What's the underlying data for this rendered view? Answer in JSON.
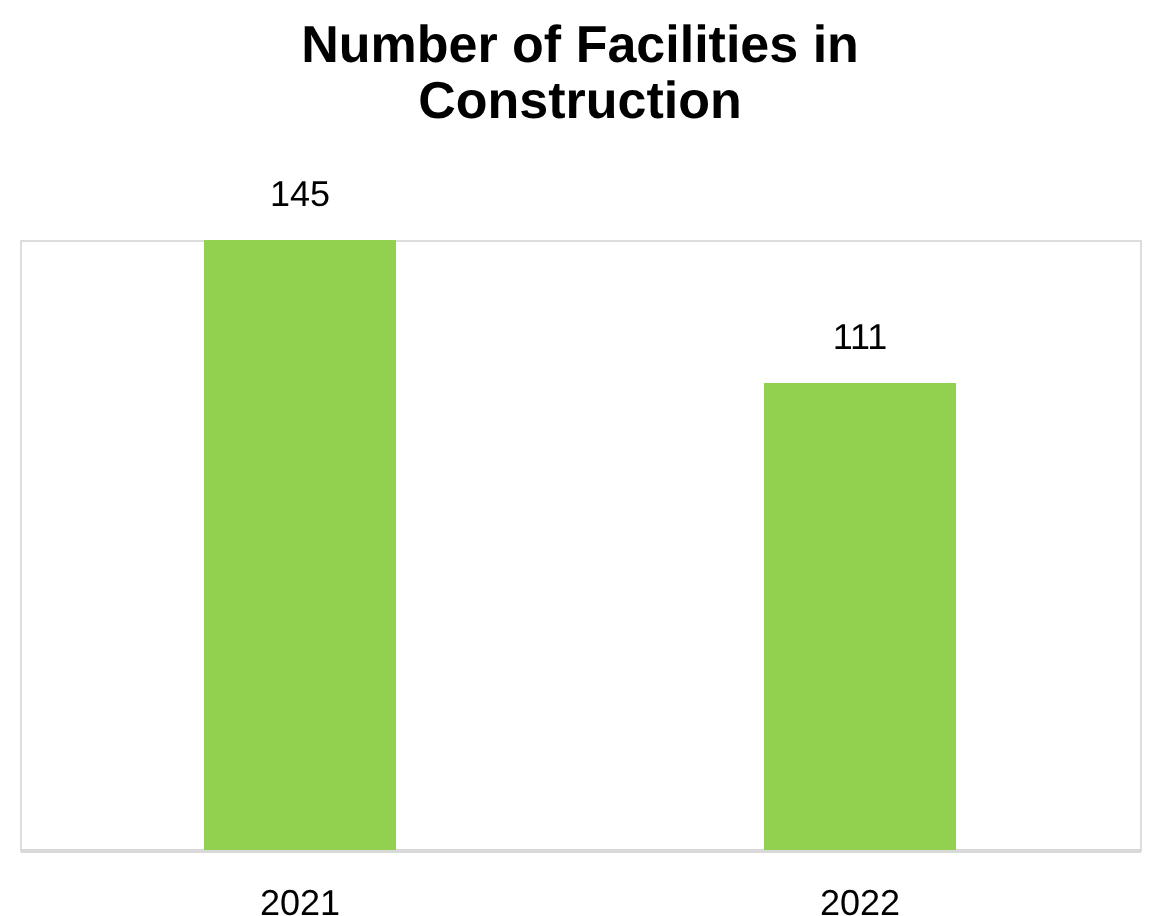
{
  "chart_data": {
    "type": "bar",
    "title": "Number of Facilities in Construction",
    "categories": [
      "2021",
      "2022"
    ],
    "values": [
      145,
      111
    ],
    "color": "#92d050",
    "data_labels": true,
    "grid": false
  }
}
